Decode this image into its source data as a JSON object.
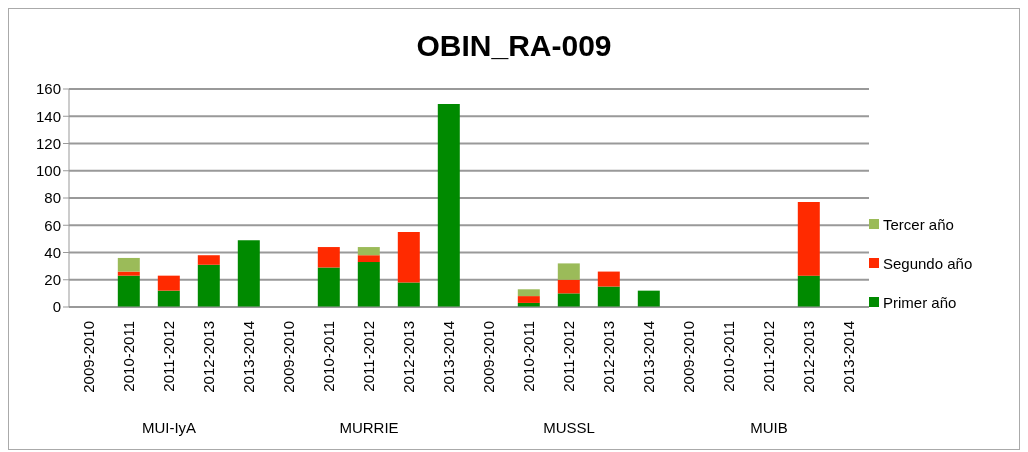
{
  "chart_data": {
    "type": "bar",
    "title": "OBIN_RA-009",
    "stacked": true,
    "grid": "y",
    "legend": "right",
    "categories": [
      "2009-2010",
      "2010-2011",
      "2011-2012",
      "2012-2013",
      "2013-2014",
      "2009-2010",
      "2010-2011",
      "2011-2012",
      "2012-2013",
      "2013-2014",
      "2009-2010",
      "2010-2011",
      "2011-2012",
      "2012-2013",
      "2013-2014",
      "2009-2010",
      "2010-2011",
      "2011-2012",
      "2012-2013",
      "2013-2014"
    ],
    "annotations": [
      "MUI-IyA",
      "MURRIE",
      "MUSSL",
      "MUIB"
    ],
    "ylim": [
      0,
      160
    ],
    "yticks": [
      0,
      20,
      40,
      60,
      80,
      100,
      120,
      140,
      160
    ],
    "series": [
      {
        "name": "Primer año",
        "color": "#008a00",
        "values": [
          null,
          23,
          12,
          31,
          49,
          null,
          29,
          33,
          18,
          149,
          null,
          3,
          10,
          15,
          12,
          null,
          null,
          null,
          23,
          null
        ]
      },
      {
        "name": "Segundo año",
        "color": "#ff2a00",
        "values": [
          null,
          3,
          11,
          7,
          null,
          null,
          15,
          5,
          37,
          null,
          null,
          5,
          10,
          11,
          null,
          null,
          null,
          null,
          54,
          null
        ]
      },
      {
        "name": "Tercer año",
        "color": "#9bbb59",
        "values": [
          null,
          10,
          null,
          null,
          null,
          null,
          null,
          6,
          null,
          null,
          null,
          5,
          12,
          null,
          null,
          null,
          null,
          null,
          null,
          null
        ]
      }
    ]
  }
}
